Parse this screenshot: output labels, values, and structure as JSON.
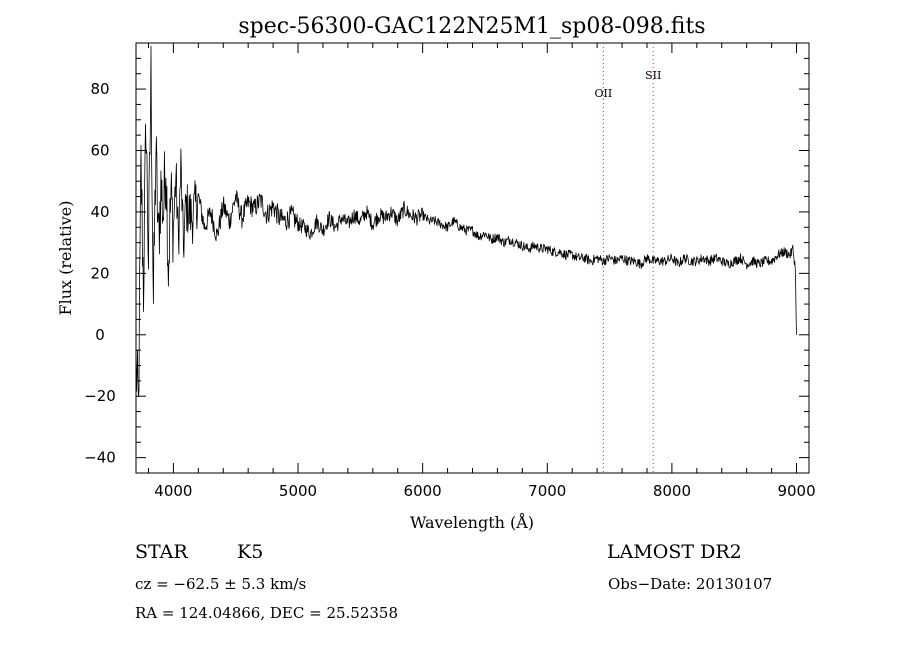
{
  "chart_data": {
    "type": "line",
    "title": "spec-56300-GAC122N25M1_sp08-098.fits",
    "xlabel": "Wavelength (Å)",
    "ylabel": "Flux (relative)",
    "xlim": [
      3700,
      9100
    ],
    "ylim": [
      -45,
      95
    ],
    "x_ticks": [
      4000,
      5000,
      6000,
      7000,
      8000,
      9000
    ],
    "y_ticks": [
      -40,
      -20,
      0,
      20,
      40,
      60,
      80
    ],
    "grid": false,
    "series": [
      {
        "x": [
          3700,
          3720,
          3740,
          3760,
          3780,
          3800,
          3820,
          3840,
          3860,
          3880,
          3900,
          3920,
          3940,
          3960,
          3980,
          4000,
          4020,
          4040,
          4060,
          4080,
          4100,
          4150,
          4200,
          4250,
          4300,
          4350,
          4400,
          4450,
          4500,
          4550,
          4600,
          4650,
          4700,
          4750,
          4800,
          4850,
          4900,
          4950,
          5000,
          5050,
          5100,
          5150,
          5200,
          5250,
          5300,
          5350,
          5400,
          5450,
          5500,
          5550,
          5600,
          5650,
          5700,
          5750,
          5800,
          5850,
          5900,
          5950,
          6000,
          6050,
          6100,
          6150,
          6200,
          6250,
          6300,
          6350,
          6400,
          6450,
          6500,
          6550,
          6600,
          6650,
          6700,
          6750,
          6800,
          6850,
          6900,
          6950,
          7000,
          7050,
          7100,
          7150,
          7200,
          7250,
          7300,
          7350,
          7400,
          7450,
          7500,
          7550,
          7600,
          7650,
          7700,
          7750,
          7800,
          7850,
          7900,
          7950,
          8000,
          8050,
          8100,
          8150,
          8200,
          8250,
          8300,
          8350,
          8400,
          8450,
          8500,
          8550,
          8600,
          8650,
          8700,
          8750,
          8800,
          8850,
          8900,
          8950,
          8970,
          8990,
          9000
        ],
        "values": [
          -10,
          -25,
          55,
          15,
          70,
          25,
          85,
          10,
          60,
          30,
          48,
          40,
          58,
          22,
          45,
          35,
          52,
          30,
          55,
          28,
          42,
          38,
          45,
          35,
          40,
          32,
          42,
          37,
          45,
          38,
          43,
          41,
          44,
          39,
          42,
          38,
          37,
          39,
          36,
          35,
          33,
          37,
          34,
          38,
          35,
          38,
          36,
          39,
          37,
          40,
          36,
          39,
          38,
          40,
          37,
          41,
          39,
          38,
          39,
          37,
          37,
          36,
          35,
          37,
          35,
          34,
          34,
          32,
          33,
          31,
          32,
          30,
          31,
          30,
          29,
          28,
          29,
          28,
          28,
          27,
          27,
          26,
          26,
          25,
          25,
          24,
          25,
          24,
          25,
          24,
          25,
          24,
          24,
          23,
          25,
          24,
          24,
          24,
          25,
          23,
          25,
          24,
          24,
          25,
          24,
          25,
          24,
          23,
          24,
          25,
          23,
          24,
          23,
          24,
          24,
          26,
          27,
          26,
          28,
          22,
          0
        ]
      }
    ],
    "annotations": [
      {
        "text": "OII",
        "x": 7450
      },
      {
        "text": "SII",
        "x": 7850
      }
    ]
  },
  "info": {
    "object_class": "STAR",
    "subclass": "K5",
    "survey": "LAMOST DR2",
    "cz": "cz = −62.5 ± 5.3 km/s",
    "obs_date": "Obs−Date: 20130107",
    "coords": "RA = 124.04866, DEC =  25.52358"
  }
}
